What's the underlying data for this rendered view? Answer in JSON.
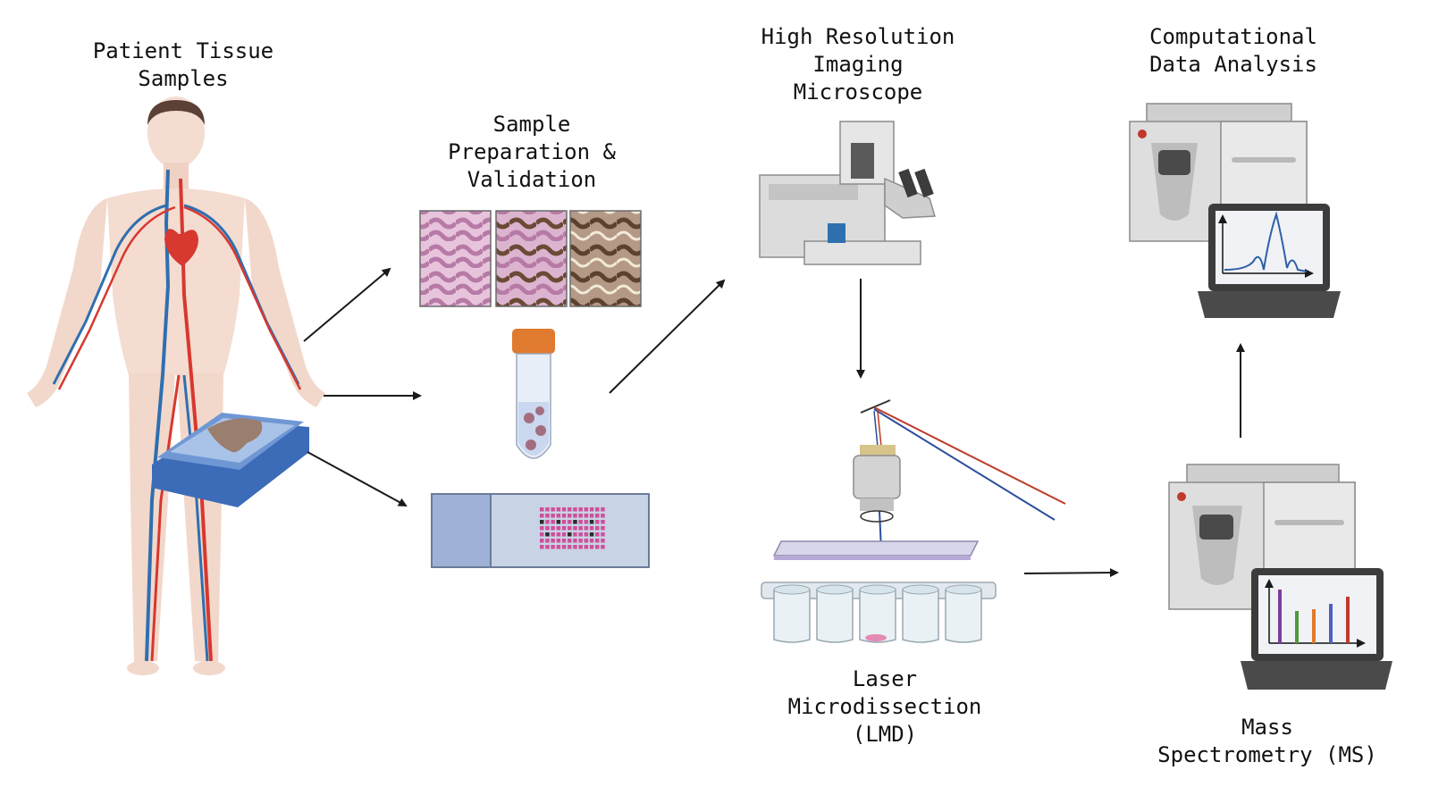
{
  "title_labels": {
    "patient": [
      "Patient Tissue",
      "Samples"
    ],
    "sample_prep": [
      "Sample",
      "Preparation &",
      "Validation"
    ],
    "imaging": [
      "High Resolution",
      "Imaging",
      "Microscope"
    ],
    "computational": [
      "Computational",
      "Data Analysis"
    ],
    "lmd": [
      "Laser",
      "Microdissection",
      "(LMD)"
    ],
    "ms": [
      "Mass",
      "Spectrometry (MS)"
    ]
  },
  "colors": {
    "artery": "#d7382f",
    "vein": "#2f6fb0",
    "skin": "#f4dcd0",
    "hair": "#5a4036",
    "tissue_pink": "#d9a3c9",
    "tissue_brown": "#7a5b45",
    "tube_cap": "#e07a2e",
    "slide_blue": "#9db2d6",
    "instrument_gray": "#dcdcdc",
    "laser_red": "#c0392b",
    "laser_blue": "#2c4f9e",
    "bar_purple": "#7b3fa0",
    "bar_green": "#4f9a3a",
    "bar_orange": "#e07a2e",
    "bar_blue": "#5060c0",
    "bar_red": "#c0392b",
    "arrow": "#1a1a1a"
  },
  "icons": [
    "human-body-icon",
    "tissue-slide-icon",
    "stained-tissue-icon",
    "centrifuge-tube-icon",
    "microarray-slide-icon",
    "microscope-icon",
    "objective-lens-icon",
    "well-plate-icon",
    "mass-spectrometer-icon",
    "laptop-icon"
  ]
}
